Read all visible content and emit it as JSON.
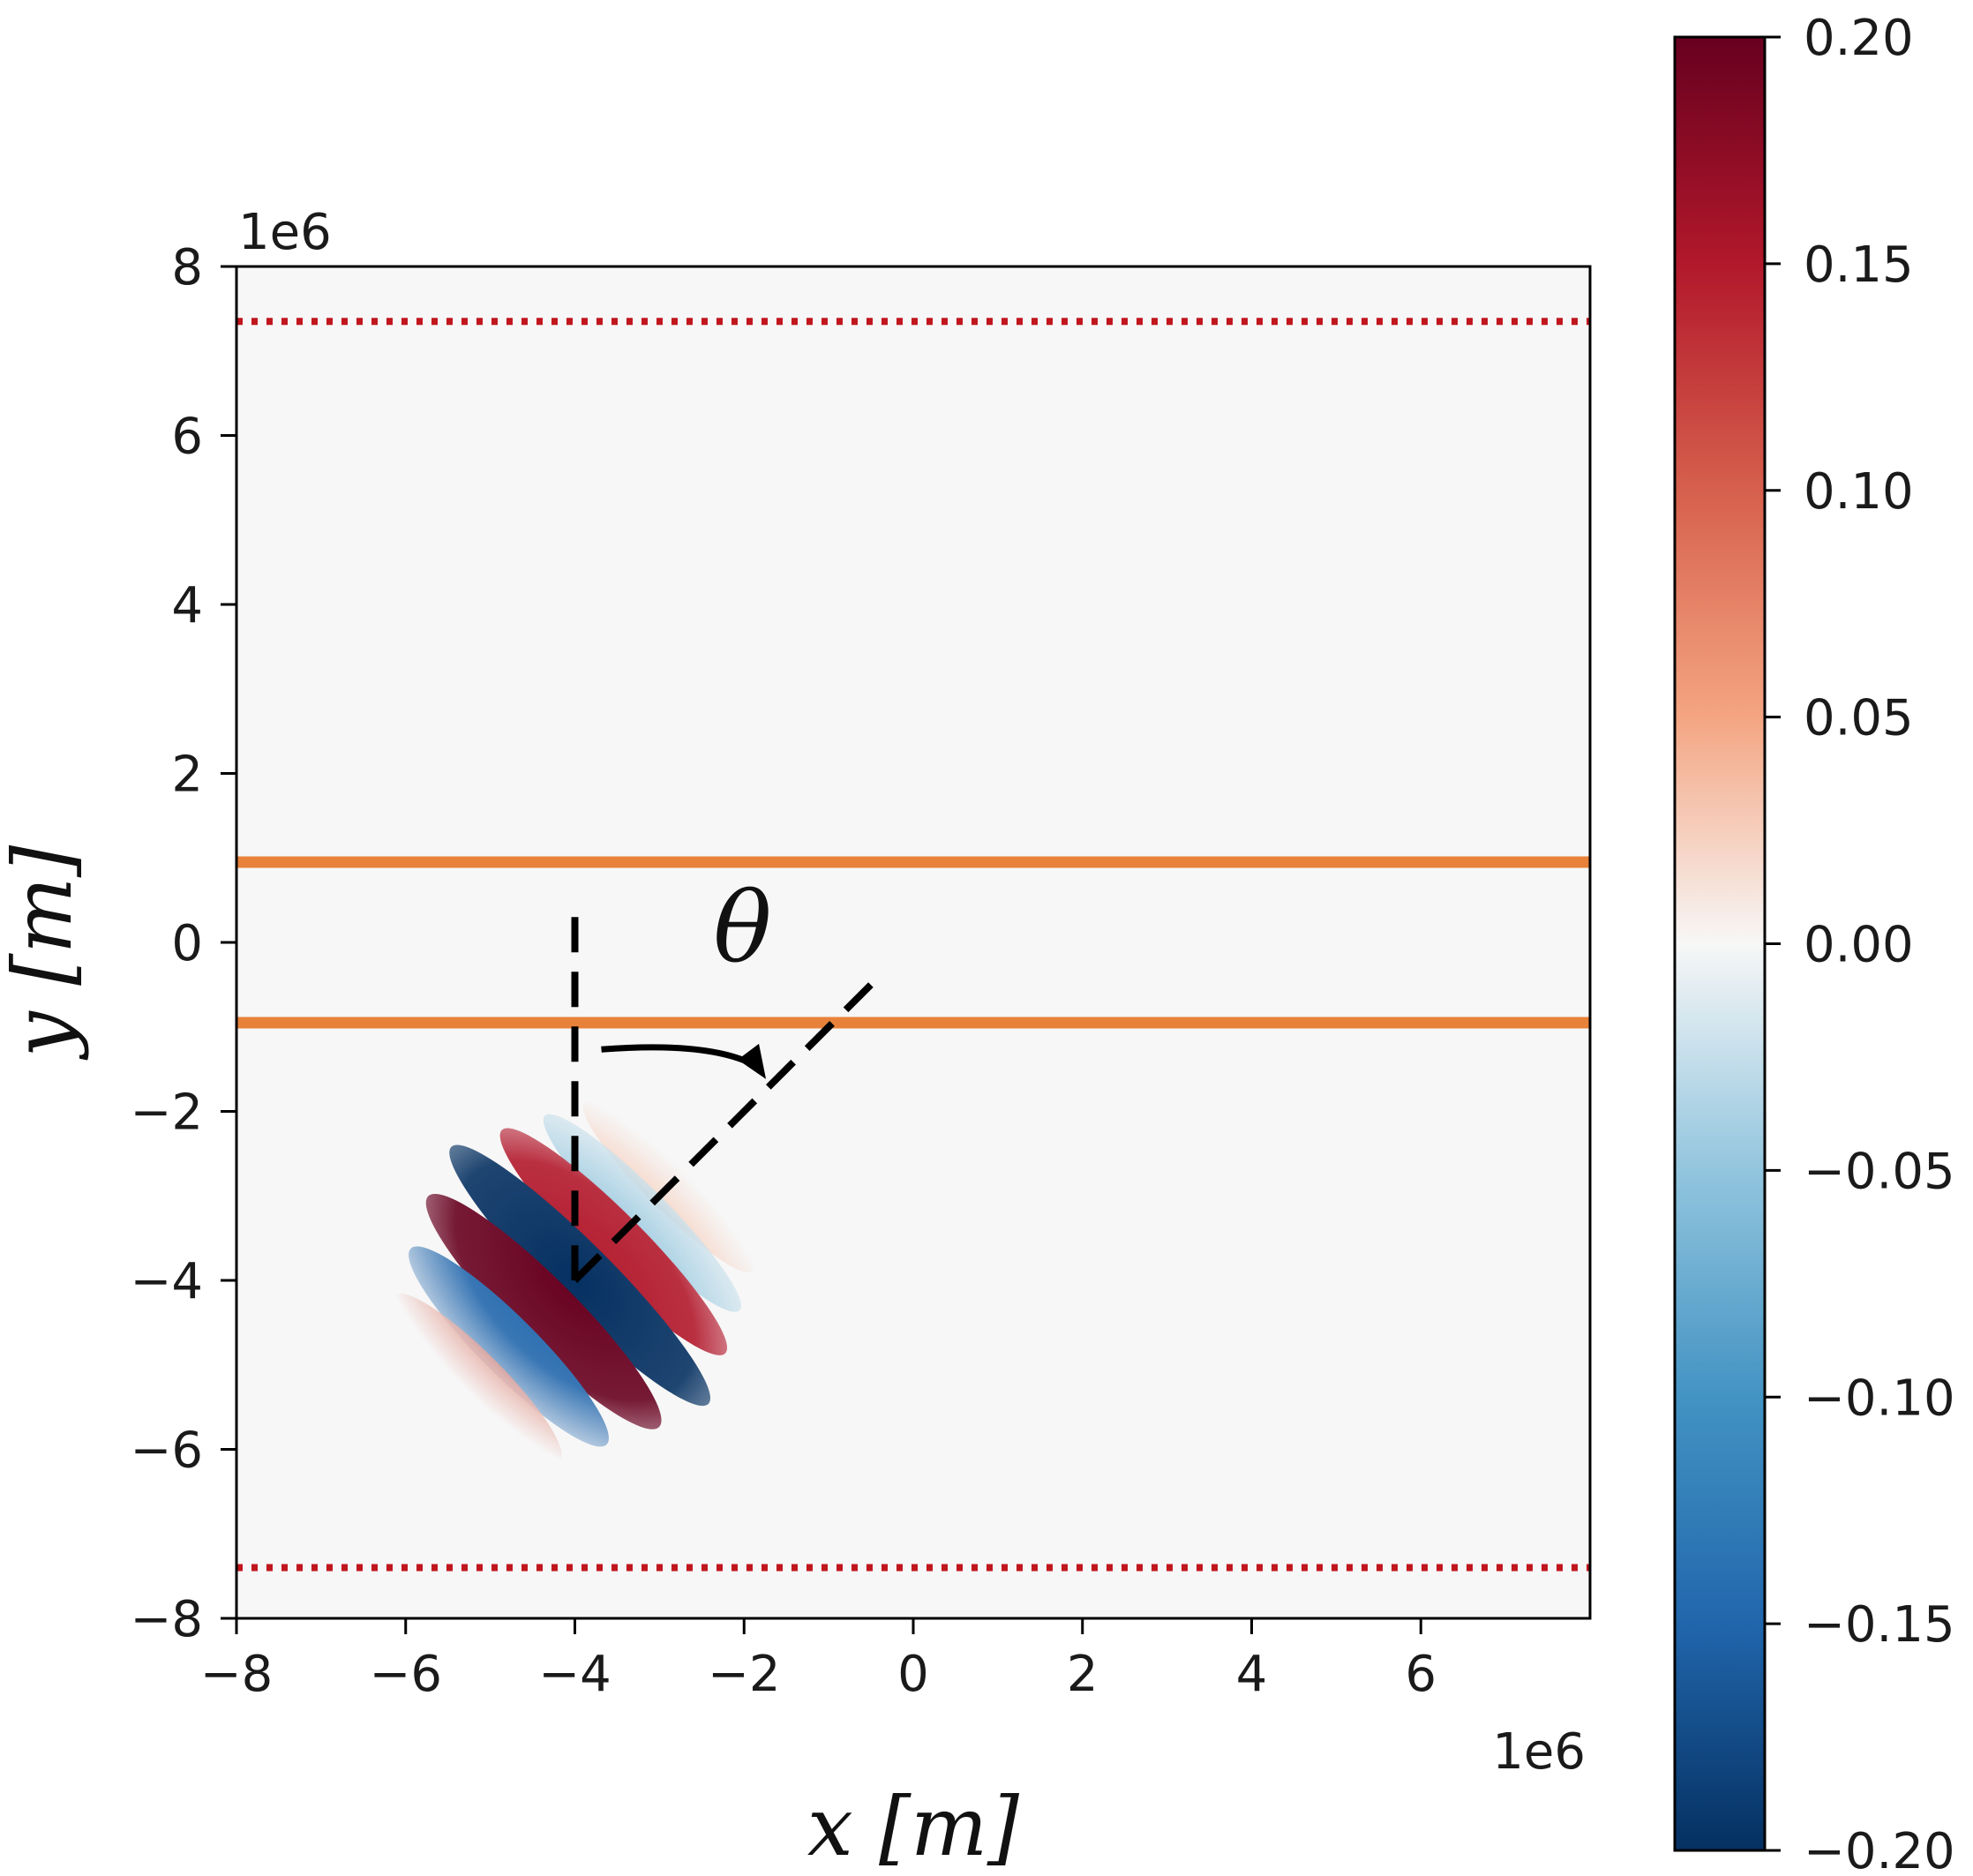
{
  "chart_data": {
    "type": "heatmap",
    "title": "",
    "xlabel": "x [m]",
    "ylabel": "y [m]",
    "x_offset_label": "1e6",
    "y_offset_label": "1e6",
    "xlim": [
      -8,
      8
    ],
    "ylim": [
      -8,
      8
    ],
    "x_ticks": [
      -8,
      -6,
      -4,
      -2,
      0,
      2,
      4,
      6
    ],
    "y_ticks": [
      -8,
      -6,
      -4,
      -2,
      0,
      2,
      4,
      6,
      8
    ],
    "x_tick_labels": [
      "−8",
      "−6",
      "−4",
      "−2",
      "0",
      "2",
      "4",
      "6"
    ],
    "y_tick_labels": [
      "−8",
      "−6",
      "−4",
      "−2",
      "0",
      "2",
      "4",
      "6",
      "8"
    ],
    "grid": false,
    "background_value": 0.0,
    "wave_packet": {
      "center": [
        -4.0,
        -4.0
      ],
      "propagation_angle_deg_from_vertical": 45,
      "peak_amplitude": 0.2,
      "description_of_pattern": "red-blue-red banded packet"
    },
    "horizontal_lines": [
      {
        "y": 7.35,
        "style": "dotted",
        "color": "#c0161d"
      },
      {
        "y": -7.4,
        "style": "dotted",
        "color": "#c0161d"
      },
      {
        "y": 0.95,
        "style": "solid",
        "color": "#e8823a"
      },
      {
        "y": -0.95,
        "style": "solid",
        "color": "#e8823a"
      }
    ],
    "angle_annotation": {
      "symbol": "θ",
      "vertex": [
        -4.0,
        -4.0
      ],
      "vertical_line_top_y": 0.3,
      "diagonal_end": [
        -0.5,
        -0.5
      ]
    },
    "colorbar": {
      "colormap": "RdBu_r",
      "vmin": -0.2,
      "vmax": 0.2,
      "ticks": [
        0.2,
        0.15,
        0.1,
        0.05,
        0.0,
        -0.05,
        -0.1,
        -0.15,
        -0.2
      ],
      "tick_labels": [
        "0.20",
        "0.15",
        "0.10",
        "0.05",
        "0.00",
        "−0.05",
        "−0.10",
        "−0.15",
        "−0.20"
      ]
    },
    "colors": {
      "background": "#f7f7f7",
      "dark_red": "#67001f",
      "dark_blue": "#053061",
      "orange_line": "#e8823a",
      "dotted_line": "#c0161d"
    }
  }
}
